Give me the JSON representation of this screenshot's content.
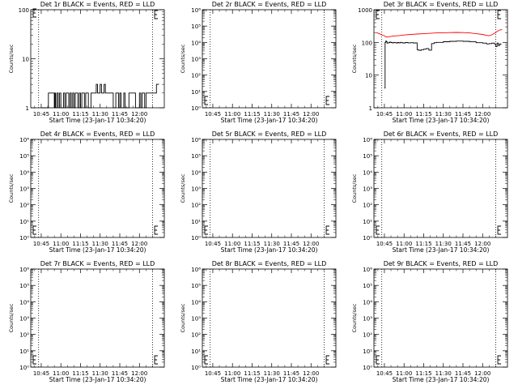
{
  "figure": {
    "x_tick_labels": [
      "10:45",
      "11:00",
      "11:15",
      "11:30",
      "11:45",
      "12:00"
    ],
    "x_label": "Start Time (23-Jan-17 10:34:20)",
    "y_label": "Counts/sec"
  },
  "chart_data": [
    {
      "type": "line",
      "title": "Det 1r BLACK = Events, RED = LLD",
      "scale": "log",
      "ylim": [
        1,
        100
      ],
      "y_tick_labels": [
        "1",
        "10",
        "100"
      ],
      "xlim_minutes": [
        -8,
        94
      ],
      "vlines_minutes": [
        -2,
        85
      ],
      "series": [
        {
          "color": "#000000",
          "x": [
            0,
            5,
            5.5,
            10,
            10.5,
            11,
            12,
            13,
            14,
            15,
            16,
            17,
            18,
            19,
            20,
            21,
            22,
            23,
            24,
            25,
            26,
            27,
            28,
            29,
            30,
            31,
            32,
            33,
            34,
            35,
            36,
            37,
            38,
            39,
            40,
            41,
            42,
            43,
            44,
            45,
            46,
            47,
            48,
            49,
            50,
            51,
            52,
            53,
            54,
            55,
            56,
            57,
            58,
            59,
            60,
            61,
            62,
            63,
            64,
            65,
            66,
            67,
            68,
            69,
            70,
            71,
            72,
            73,
            74,
            75,
            76,
            77,
            78,
            79,
            80,
            81,
            82,
            83,
            84,
            85,
            86,
            87,
            88,
            89,
            90
          ],
          "values": [
            1,
            1,
            2,
            1,
            2,
            1,
            2,
            1,
            2,
            1,
            1,
            2,
            1,
            2,
            2,
            1,
            2,
            1,
            2,
            1,
            2,
            2,
            1,
            2,
            1,
            2,
            2,
            1,
            2,
            2,
            1,
            1,
            2,
            2,
            2,
            2,
            3,
            2,
            2,
            3,
            2,
            2,
            3,
            2,
            2,
            2,
            2,
            2,
            2,
            1,
            1,
            2,
            2,
            1,
            2,
            1,
            1,
            2,
            1,
            1,
            1,
            2,
            2,
            2,
            2,
            2,
            1,
            1,
            1,
            2,
            1,
            2,
            2,
            1,
            2,
            2,
            2,
            2,
            2,
            2,
            2,
            2,
            3,
            3,
            3
          ]
        }
      ]
    },
    {
      "type": "line",
      "title": "Det 2r BLACK = Events, RED = LLD",
      "scale": "log",
      "ylim": [
        1,
        1000000
      ],
      "y_tick_labels": [
        "10⁰",
        "10¹",
        "10²",
        "10³",
        "10⁴",
        "10⁵",
        "10⁶"
      ],
      "xlim_minutes": [
        -8,
        94
      ],
      "vlines_minutes": [
        -2,
        85
      ],
      "series": []
    },
    {
      "type": "line",
      "title": "Det 3r BLACK = Events, RED = LLD",
      "scale": "log",
      "ylim": [
        1,
        1000
      ],
      "y_tick_labels": [
        "1",
        "10",
        "100",
        "1000"
      ],
      "xlim_minutes": [
        -8,
        94
      ],
      "vlines_minutes": [
        -2,
        85
      ],
      "series": [
        {
          "color": "#ff0000",
          "x": [
            -6,
            -4,
            -2,
            0,
            1,
            2,
            4,
            6,
            8,
            10,
            12,
            15,
            20,
            25,
            30,
            35,
            40,
            45,
            50,
            55,
            60,
            65,
            70,
            75,
            78,
            80,
            82,
            84,
            86,
            88,
            90
          ],
          "values": [
            200,
            185,
            170,
            160,
            150,
            145,
            150,
            155,
            158,
            160,
            163,
            168,
            175,
            180,
            185,
            190,
            195,
            198,
            200,
            202,
            200,
            195,
            185,
            175,
            165,
            160,
            170,
            190,
            215,
            240,
            245
          ]
        },
        {
          "color": "#000000",
          "x": [
            0,
            0.5,
            1,
            1.5,
            2,
            3,
            4,
            5,
            6,
            7,
            8,
            9,
            10,
            11,
            12,
            13,
            14,
            16,
            18,
            20,
            22,
            24,
            25,
            26,
            27,
            28,
            30,
            32,
            34,
            36,
            38,
            40,
            45,
            50,
            55,
            60,
            65,
            70,
            75,
            78,
            80,
            82,
            84,
            85,
            86,
            87,
            88,
            89
          ],
          "values": [
            4,
            100,
            110,
            105,
            95,
            98,
            102,
            99,
            97,
            100,
            98,
            96,
            99,
            97,
            100,
            98,
            96,
            99,
            97,
            98,
            96,
            97,
            60,
            58,
            57,
            60,
            62,
            65,
            58,
            92,
            98,
            100,
            105,
            108,
            110,
            108,
            104,
            98,
            95,
            90,
            92,
            95,
            90,
            75,
            95,
            80,
            90,
            85
          ]
        }
      ]
    },
    {
      "type": "line",
      "title": "Det 4r BLACK = Events, RED = LLD",
      "scale": "log",
      "ylim": [
        1,
        1000000
      ],
      "y_tick_labels": [
        "10⁰",
        "10¹",
        "10²",
        "10³",
        "10⁴",
        "10⁵",
        "10⁶"
      ],
      "xlim_minutes": [
        -8,
        94
      ],
      "vlines_minutes": [
        -2,
        85
      ],
      "series": []
    },
    {
      "type": "line",
      "title": "Det 5r BLACK = Events, RED = LLD",
      "scale": "log",
      "ylim": [
        1,
        1000000
      ],
      "y_tick_labels": [
        "10⁰",
        "10¹",
        "10²",
        "10³",
        "10⁴",
        "10⁵",
        "10⁶"
      ],
      "xlim_minutes": [
        -8,
        94
      ],
      "vlines_minutes": [
        -2,
        85
      ],
      "series": []
    },
    {
      "type": "line",
      "title": "Det 6r BLACK = Events, RED = LLD",
      "scale": "log",
      "ylim": [
        1,
        1000000
      ],
      "y_tick_labels": [
        "10⁰",
        "10¹",
        "10²",
        "10³",
        "10⁴",
        "10⁵",
        "10⁶"
      ],
      "xlim_minutes": [
        -8,
        94
      ],
      "vlines_minutes": [
        -2,
        85
      ],
      "series": []
    },
    {
      "type": "line",
      "title": "Det 7r BLACK = Events, RED = LLD",
      "scale": "log",
      "ylim": [
        1,
        1000000
      ],
      "y_tick_labels": [
        "10⁰",
        "10¹",
        "10²",
        "10³",
        "10⁴",
        "10⁵",
        "10⁶"
      ],
      "xlim_minutes": [
        -8,
        94
      ],
      "vlines_minutes": [
        -2,
        85
      ],
      "series": []
    },
    {
      "type": "line",
      "title": "Det 8r BLACK = Events, RED = LLD",
      "scale": "log",
      "ylim": [
        1,
        1000000
      ],
      "y_tick_labels": [
        "10⁰",
        "10¹",
        "10²",
        "10³",
        "10⁴",
        "10⁵",
        "10⁶"
      ],
      "xlim_minutes": [
        -8,
        94
      ],
      "vlines_minutes": [
        -2,
        85
      ],
      "series": []
    },
    {
      "type": "line",
      "title": "Det 9r BLACK = Events, RED = LLD",
      "scale": "log",
      "ylim": [
        1,
        1000000
      ],
      "y_tick_labels": [
        "10⁰",
        "10¹",
        "10²",
        "10³",
        "10⁴",
        "10⁵",
        "10⁶"
      ],
      "xlim_minutes": [
        -8,
        94
      ],
      "vlines_minutes": [
        -2,
        85
      ],
      "series": []
    }
  ]
}
